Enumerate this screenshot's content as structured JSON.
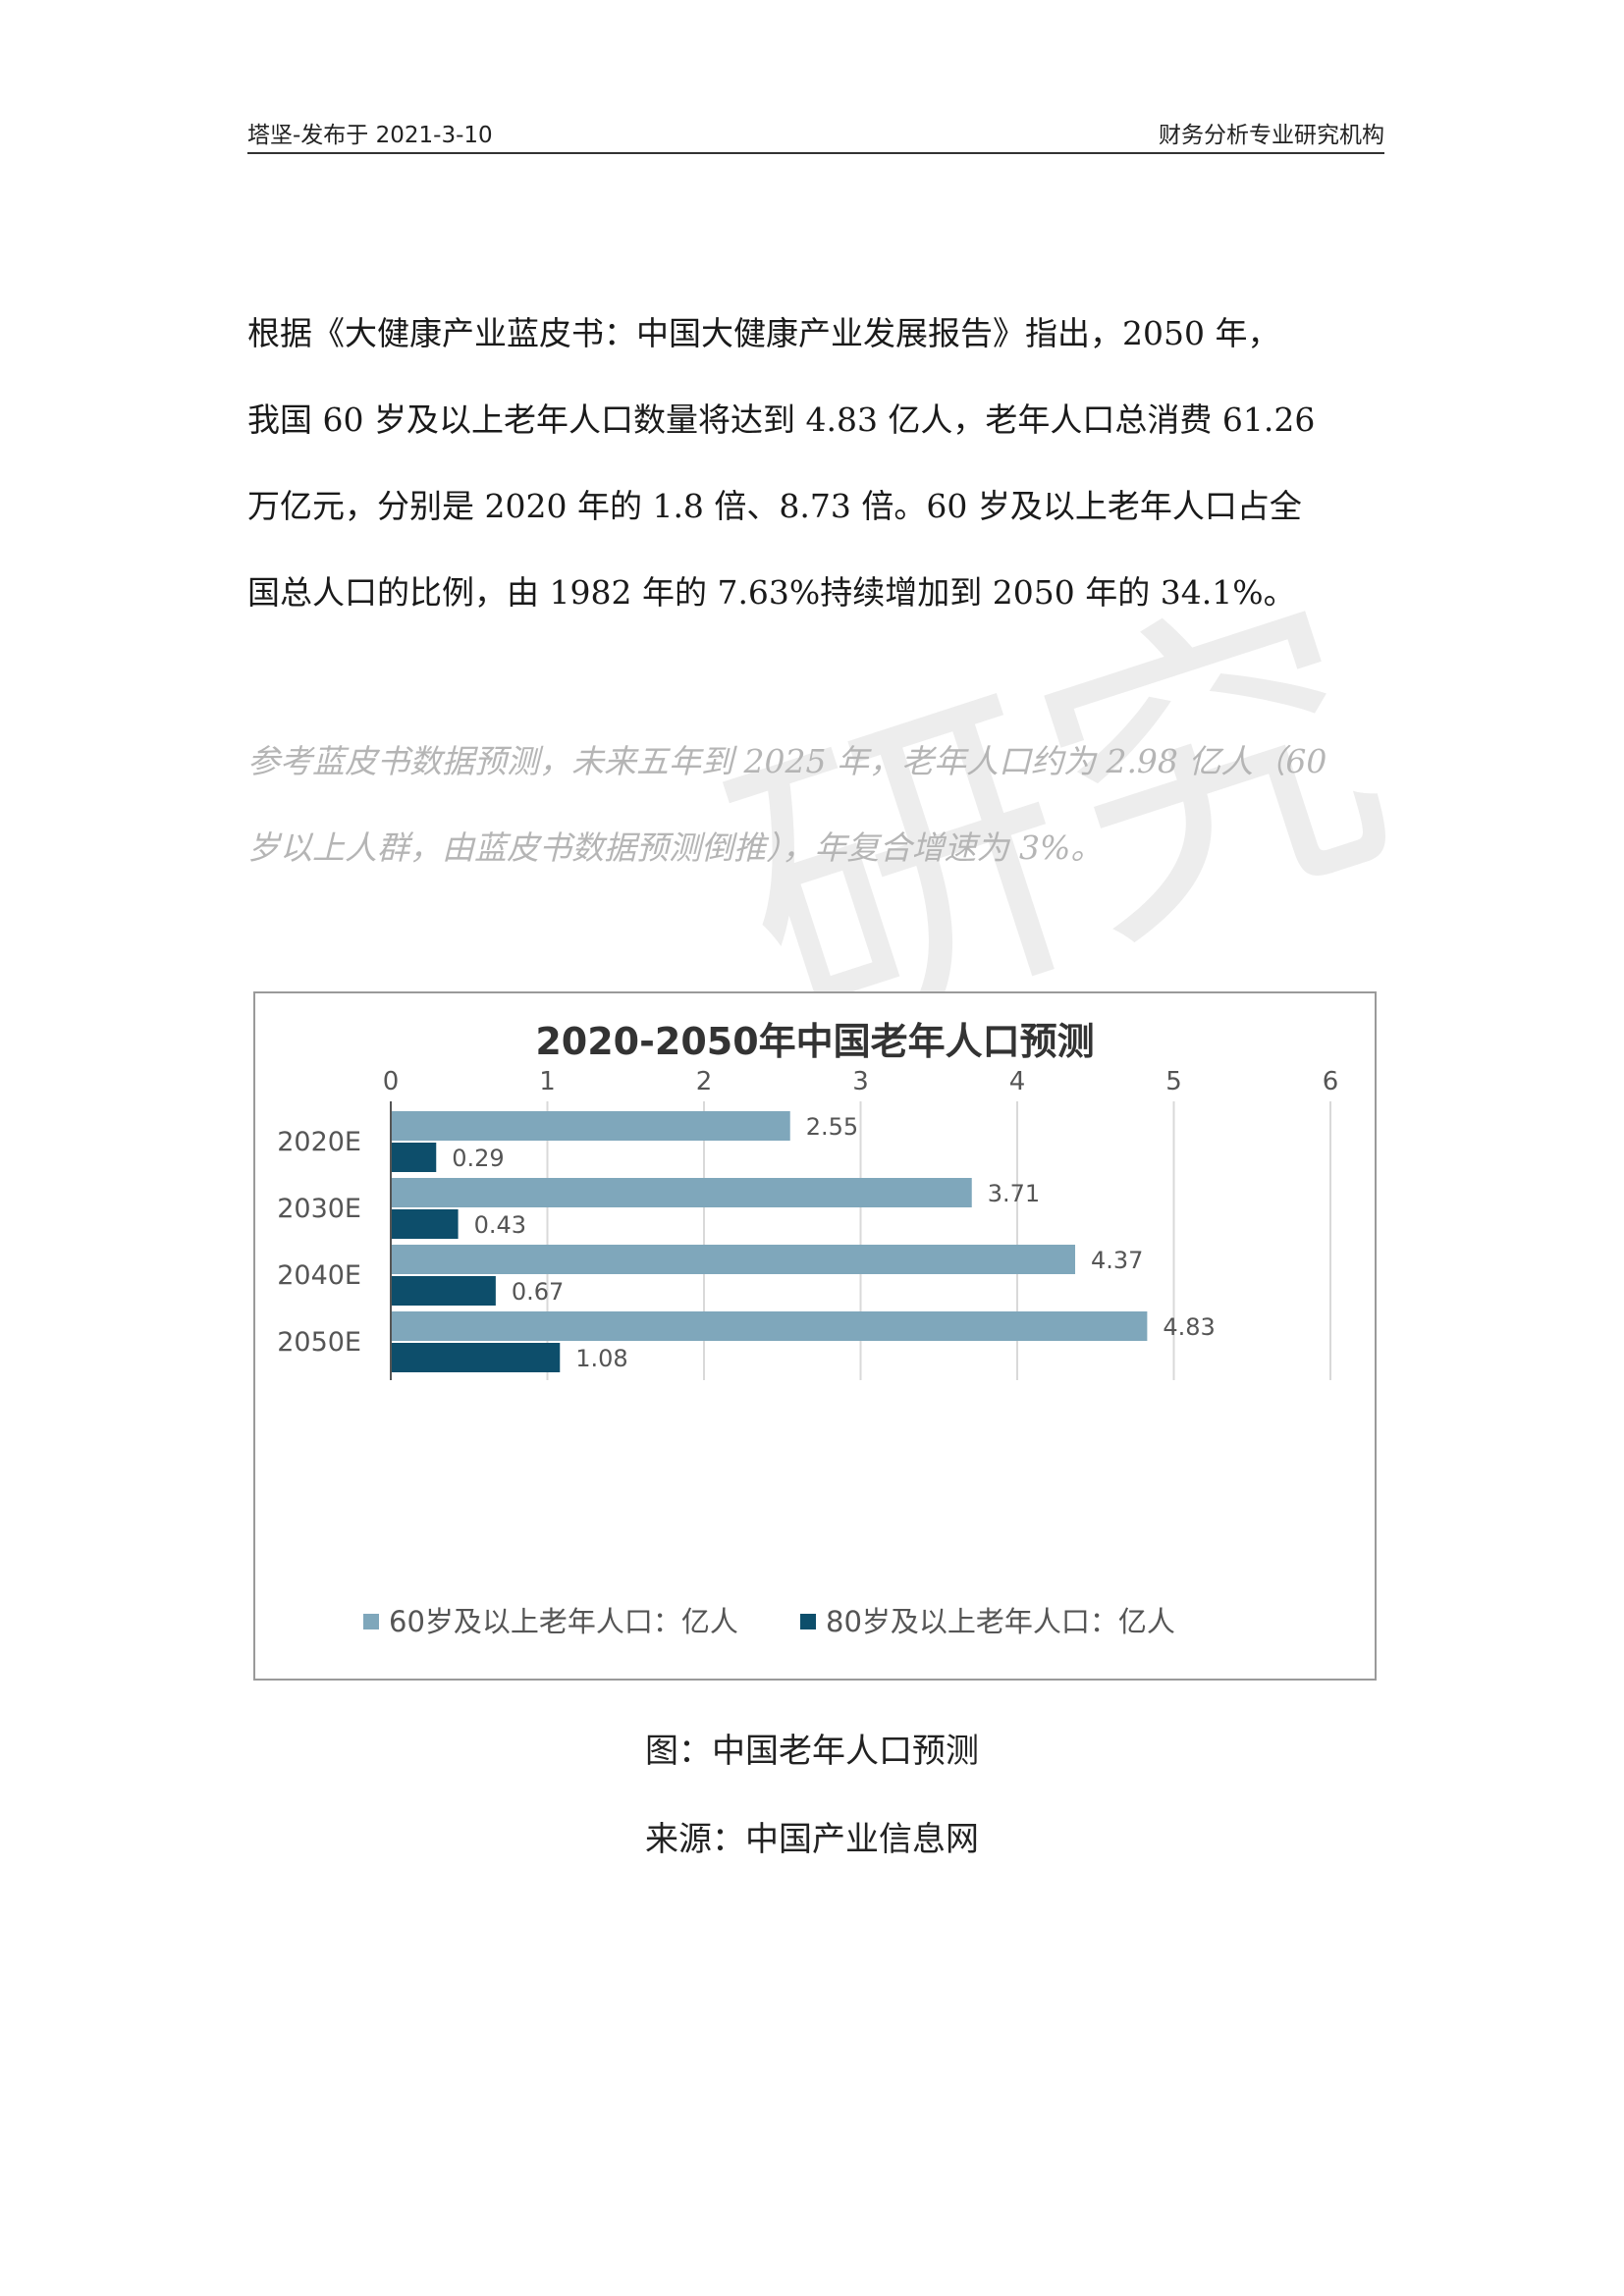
{
  "header": {
    "left": "塔坚-发布于 2021-3-10",
    "right": "财务分析专业研究机构"
  },
  "body": {
    "lines": [
      "根据《大健康产业蓝皮书：中国大健康产业发展报告》指出，2050 年，",
      "我国 60 岁及以上老年人口数量将达到 4.83 亿人，老年人口总消费 61.26",
      "万亿元，分别是 2020 年的 1.8 倍、8.73 倍。60 岁及以上老年人口占全",
      "国总人口的比例，由 1982 年的 7.63%持续增加到 2050 年的 34.1%。"
    ]
  },
  "note": {
    "lines": [
      "参考蓝皮书数据预测，未来五年到 2025 年，老年人口约为 2.98 亿人（60",
      "岁以上人群，由蓝皮书数据预测倒推），年复合增速为 3%。"
    ]
  },
  "watermark": {
    "text": "研究"
  },
  "chart_data": {
    "type": "bar",
    "orientation": "horizontal",
    "title": "2020-2050年中国老年人口预测",
    "categories": [
      "2020E",
      "2030E",
      "2040E",
      "2050E"
    ],
    "xlim": [
      0,
      6
    ],
    "xticks": [
      0,
      1,
      2,
      3,
      4,
      5,
      6
    ],
    "grid": true,
    "legend_position": "bottom",
    "series": [
      {
        "name": "60岁及以上老年人口：亿人",
        "color": "#7fa7bb",
        "values": [
          2.55,
          3.71,
          4.37,
          4.83
        ]
      },
      {
        "name": "80岁及以上老年人口：亿人",
        "color": "#0d4e6b",
        "values": [
          0.29,
          0.43,
          0.67,
          1.08
        ]
      }
    ]
  },
  "captions": {
    "figure": "图：中国老年人口预测",
    "source": "来源：中国产业信息网"
  }
}
